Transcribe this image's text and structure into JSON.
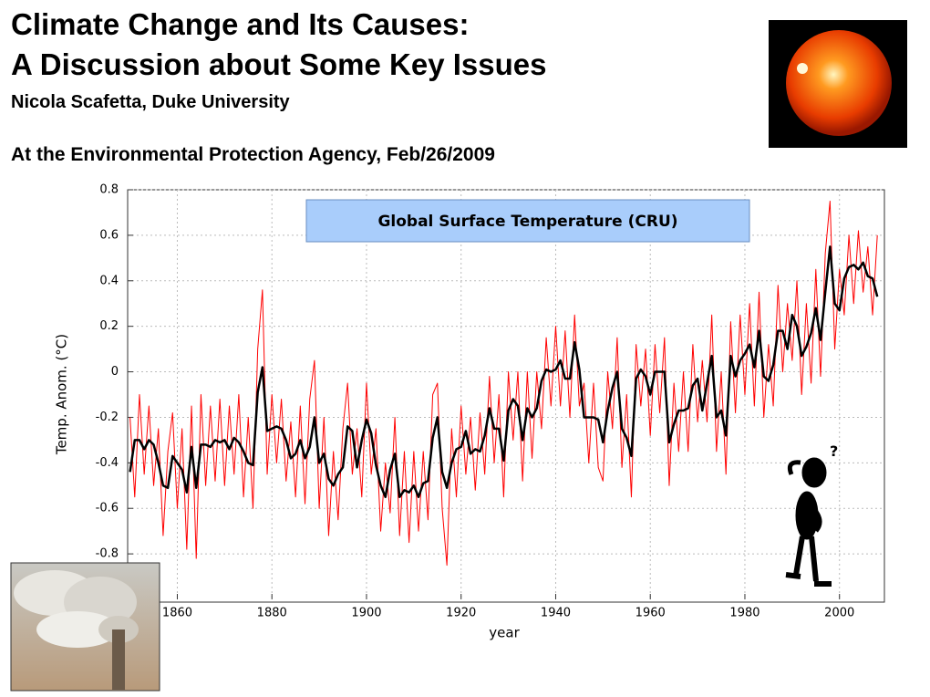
{
  "slide": {
    "title_line1": "Climate Change and Its Causes:",
    "title_line2": "A Discussion about Some Key Issues",
    "author": "Nicola Scafetta, Duke University",
    "venue": "At the Environmental Protection Agency,  Feb/26/2009"
  },
  "chart_data": {
    "type": "line",
    "annotation": "Global Surface Temperature (CRU)",
    "x_label": "year",
    "y_label": "Temp. Anom. (°C)",
    "xlim": [
      1849.5,
      2009.5
    ],
    "xticks": [
      1860,
      1880,
      1900,
      1920,
      1940,
      1960,
      1980,
      2000
    ],
    "ylim": [
      -1.0,
      0.8
    ],
    "yticks": [
      0.8,
      0.6,
      0.4,
      0.2,
      0,
      -0.2,
      -0.4,
      -0.6,
      -0.8
    ],
    "grid": true,
    "x": [
      1850,
      1851,
      1852,
      1853,
      1854,
      1855,
      1856,
      1857,
      1858,
      1859,
      1860,
      1861,
      1862,
      1863,
      1864,
      1865,
      1866,
      1867,
      1868,
      1869,
      1870,
      1871,
      1872,
      1873,
      1874,
      1875,
      1876,
      1877,
      1878,
      1879,
      1880,
      1881,
      1882,
      1883,
      1884,
      1885,
      1886,
      1887,
      1888,
      1889,
      1890,
      1891,
      1892,
      1893,
      1894,
      1895,
      1896,
      1897,
      1898,
      1899,
      1900,
      1901,
      1902,
      1903,
      1904,
      1905,
      1906,
      1907,
      1908,
      1909,
      1910,
      1911,
      1912,
      1913,
      1914,
      1915,
      1916,
      1917,
      1918,
      1919,
      1920,
      1921,
      1922,
      1923,
      1924,
      1925,
      1926,
      1927,
      1928,
      1929,
      1930,
      1931,
      1932,
      1933,
      1934,
      1935,
      1936,
      1937,
      1938,
      1939,
      1940,
      1941,
      1942,
      1943,
      1944,
      1945,
      1946,
      1947,
      1948,
      1949,
      1950,
      1951,
      1952,
      1953,
      1954,
      1955,
      1956,
      1957,
      1958,
      1959,
      1960,
      1961,
      1962,
      1963,
      1964,
      1965,
      1966,
      1967,
      1968,
      1969,
      1970,
      1971,
      1972,
      1973,
      1974,
      1975,
      1976,
      1977,
      1978,
      1979,
      1980,
      1981,
      1982,
      1983,
      1984,
      1985,
      1986,
      1987,
      1988,
      1989,
      1990,
      1991,
      1992,
      1993,
      1994,
      1995,
      1996,
      1997,
      1998,
      1999,
      2000,
      2001,
      2002,
      2003,
      2004,
      2005,
      2006,
      2007,
      2008
    ],
    "series": [
      {
        "color": "#ff0000",
        "values": [
          -0.2,
          -0.55,
          -0.1,
          -0.45,
          -0.15,
          -0.5,
          -0.25,
          -0.72,
          -0.35,
          -0.18,
          -0.6,
          -0.25,
          -0.78,
          -0.15,
          -0.82,
          -0.1,
          -0.5,
          -0.15,
          -0.48,
          -0.12,
          -0.5,
          -0.15,
          -0.45,
          -0.1,
          -0.55,
          -0.2,
          -0.6,
          0.1,
          0.36,
          -0.45,
          -0.1,
          -0.4,
          -0.12,
          -0.48,
          -0.22,
          -0.55,
          -0.15,
          -0.58,
          -0.12,
          0.05,
          -0.6,
          -0.2,
          -0.72,
          -0.35,
          -0.65,
          -0.25,
          -0.05,
          -0.45,
          -0.25,
          -0.55,
          -0.05,
          -0.45,
          -0.25,
          -0.7,
          -0.4,
          -0.62,
          -0.2,
          -0.72,
          -0.35,
          -0.75,
          -0.35,
          -0.7,
          -0.35,
          -0.65,
          -0.1,
          -0.05,
          -0.6,
          -0.85,
          -0.25,
          -0.55,
          -0.15,
          -0.45,
          -0.2,
          -0.52,
          -0.18,
          -0.45,
          -0.02,
          -0.4,
          -0.1,
          -0.55,
          0.0,
          -0.3,
          0.0,
          -0.48,
          0.0,
          -0.38,
          0.0,
          -0.25,
          0.15,
          -0.15,
          0.2,
          -0.15,
          0.18,
          -0.2,
          0.25,
          -0.15,
          -0.05,
          -0.4,
          -0.05,
          -0.42,
          -0.48,
          0.0,
          -0.25,
          0.15,
          -0.42,
          -0.1,
          -0.55,
          0.12,
          -0.15,
          0.1,
          -0.28,
          0.12,
          -0.18,
          0.15,
          -0.5,
          -0.05,
          -0.35,
          0.0,
          -0.35,
          0.12,
          -0.22,
          0.05,
          -0.22,
          0.25,
          -0.35,
          0.0,
          -0.45,
          0.22,
          -0.18,
          0.25,
          -0.1,
          0.3,
          -0.15,
          0.35,
          -0.2,
          0.12,
          -0.15,
          0.38,
          0.0,
          0.3,
          0.05,
          0.4,
          -0.1,
          0.3,
          -0.05,
          0.45,
          -0.02,
          0.52,
          0.75,
          0.1,
          0.45,
          0.25,
          0.6,
          0.3,
          0.62,
          0.35,
          0.55,
          0.25,
          0.6
        ]
      },
      {
        "color": "#000000",
        "values": [
          -0.44,
          -0.3,
          -0.3,
          -0.34,
          -0.3,
          -0.32,
          -0.4,
          -0.5,
          -0.51,
          -0.37,
          -0.4,
          -0.43,
          -0.53,
          -0.33,
          -0.51,
          -0.32,
          -0.32,
          -0.33,
          -0.3,
          -0.31,
          -0.3,
          -0.34,
          -0.29,
          -0.31,
          -0.35,
          -0.4,
          -0.41,
          -0.09,
          0.02,
          -0.26,
          -0.25,
          -0.24,
          -0.25,
          -0.3,
          -0.38,
          -0.36,
          -0.3,
          -0.38,
          -0.33,
          -0.2,
          -0.4,
          -0.36,
          -0.47,
          -0.5,
          -0.45,
          -0.42,
          -0.24,
          -0.26,
          -0.42,
          -0.3,
          -0.21,
          -0.27,
          -0.41,
          -0.5,
          -0.55,
          -0.43,
          -0.36,
          -0.55,
          -0.52,
          -0.53,
          -0.5,
          -0.55,
          -0.49,
          -0.48,
          -0.29,
          -0.2,
          -0.44,
          -0.51,
          -0.4,
          -0.34,
          -0.33,
          -0.26,
          -0.36,
          -0.34,
          -0.35,
          -0.28,
          -0.16,
          -0.25,
          -0.25,
          -0.39,
          -0.17,
          -0.12,
          -0.15,
          -0.3,
          -0.16,
          -0.2,
          -0.16,
          -0.04,
          0.01,
          0.0,
          0.01,
          0.05,
          -0.03,
          -0.03,
          0.13,
          0.01,
          -0.2,
          -0.2,
          -0.2,
          -0.21,
          -0.31,
          -0.17,
          -0.07,
          0.0,
          -0.25,
          -0.29,
          -0.37,
          -0.03,
          0.01,
          -0.02,
          -0.1,
          0.0,
          0.0,
          0.0,
          -0.31,
          -0.23,
          -0.17,
          -0.17,
          -0.16,
          -0.06,
          -0.03,
          -0.17,
          -0.05,
          0.07,
          -0.2,
          -0.17,
          -0.28,
          0.07,
          -0.02,
          0.05,
          0.08,
          0.12,
          0.02,
          0.18,
          -0.02,
          -0.04,
          0.03,
          0.18,
          0.18,
          0.1,
          0.25,
          0.2,
          0.07,
          0.11,
          0.17,
          0.28,
          0.14,
          0.35,
          0.55,
          0.3,
          0.27,
          0.41,
          0.46,
          0.47,
          0.45,
          0.48,
          0.42,
          0.41,
          0.33
        ]
      }
    ]
  }
}
